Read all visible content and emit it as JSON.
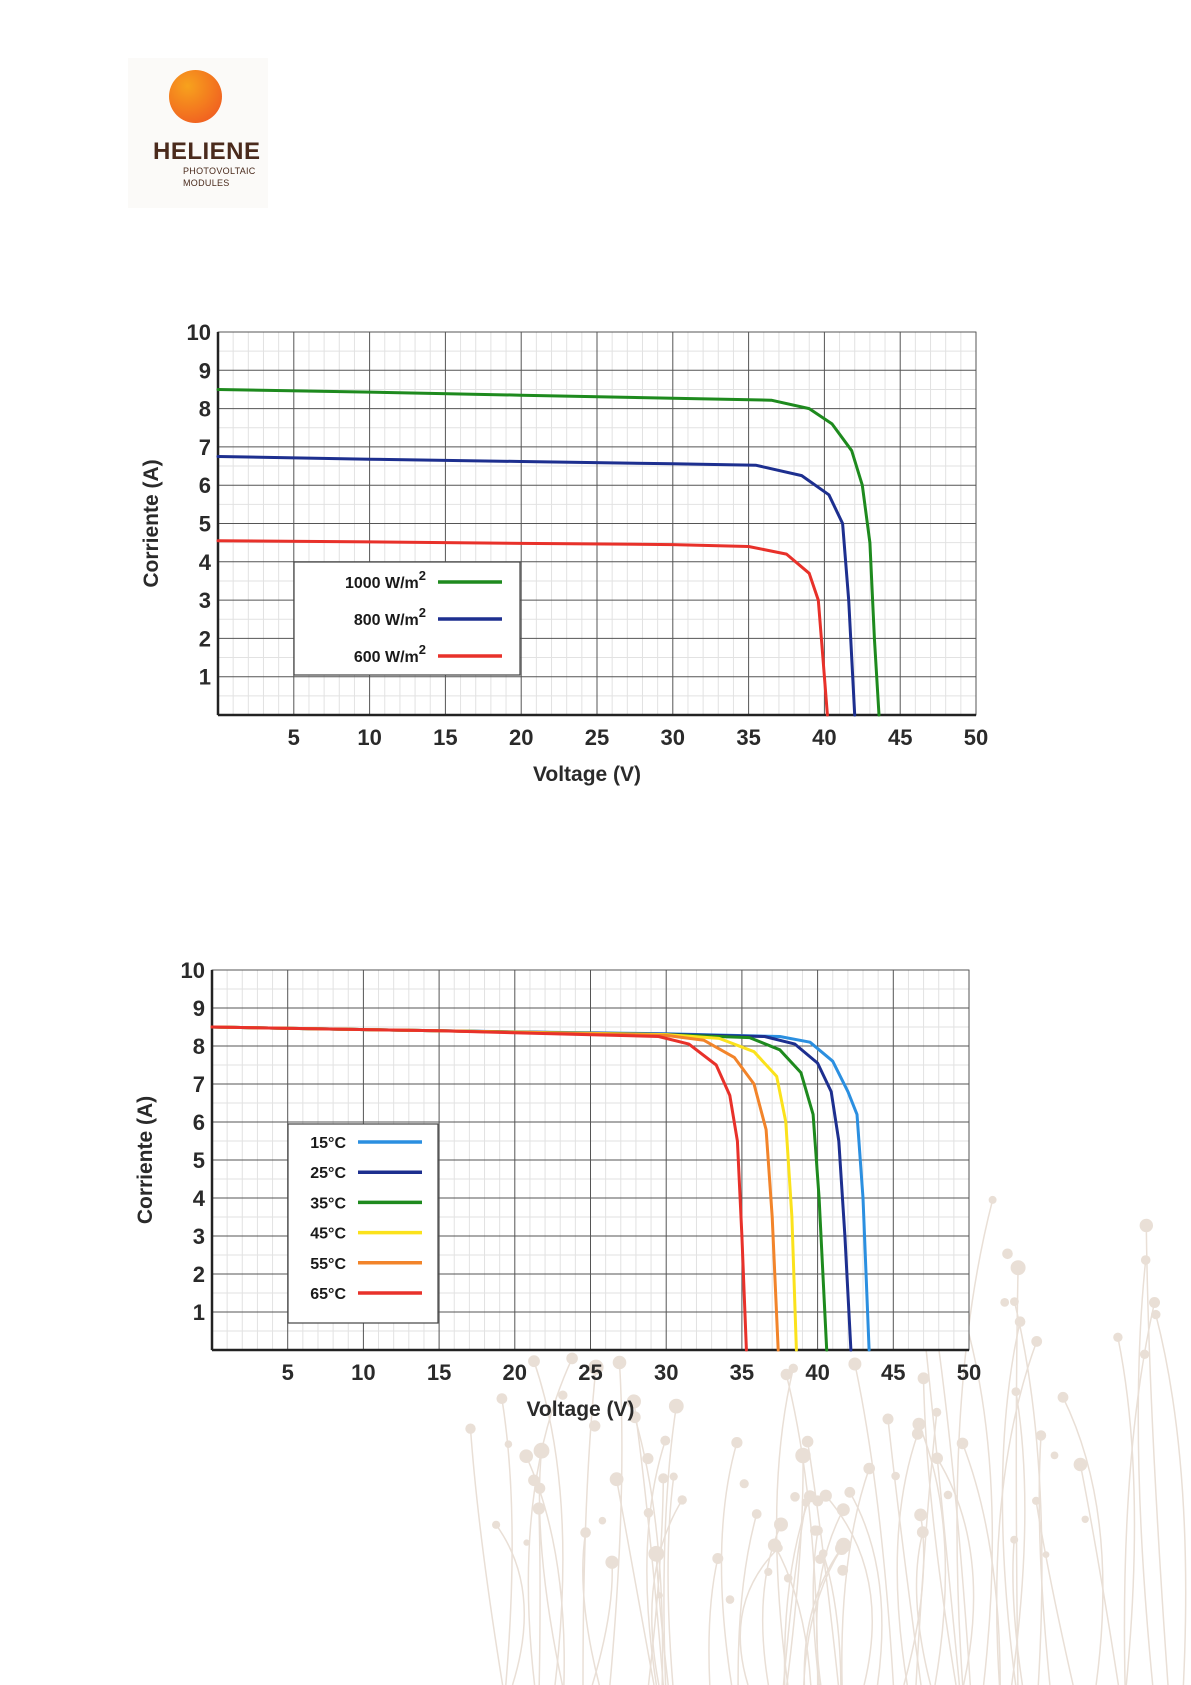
{
  "logo": {
    "name": "HELIENE",
    "sub1": "PHOTOVOLTAIC",
    "sub2": "MODULES",
    "sun_colors": [
      "#f7a21d",
      "#ee4f23"
    ]
  },
  "chart_data": [
    {
      "type": "line",
      "title": "",
      "xlabel": "Voltage (V)",
      "ylabel": "Corriente (A)",
      "xlim": [
        0,
        50
      ],
      "ylim": [
        0,
        10
      ],
      "x_ticks": [
        5,
        10,
        15,
        20,
        25,
        30,
        35,
        40,
        45,
        50
      ],
      "y_ticks": [
        1,
        2,
        3,
        4,
        5,
        6,
        7,
        8,
        9,
        10
      ],
      "grid": true,
      "legend_position": "lower-left",
      "series": [
        {
          "name": "1000 W/m",
          "name_sup": "2",
          "color": "#1e8a1e",
          "points": [
            [
              0,
              8.5
            ],
            [
              10,
              8.43
            ],
            [
              20,
              8.35
            ],
            [
              30,
              8.27
            ],
            [
              36.5,
              8.22
            ],
            [
              39,
              8.0
            ],
            [
              40.5,
              7.6
            ],
            [
              41.8,
              6.9
            ],
            [
              42.5,
              6.0
            ],
            [
              43,
              4.5
            ],
            [
              43.3,
              2.0
            ],
            [
              43.6,
              0
            ]
          ]
        },
        {
          "name": "800 W/m",
          "name_sup": "2",
          "color": "#1d2f8f",
          "points": [
            [
              0,
              6.75
            ],
            [
              10,
              6.68
            ],
            [
              20,
              6.62
            ],
            [
              30,
              6.56
            ],
            [
              35.5,
              6.52
            ],
            [
              38.5,
              6.25
            ],
            [
              40.3,
              5.75
            ],
            [
              41.2,
              5.0
            ],
            [
              41.6,
              3.0
            ],
            [
              42.0,
              0
            ]
          ]
        },
        {
          "name": "600 W/m",
          "name_sup": "2",
          "color": "#e8312a",
          "points": [
            [
              0,
              4.55
            ],
            [
              10,
              4.52
            ],
            [
              20,
              4.48
            ],
            [
              30,
              4.45
            ],
            [
              35,
              4.4
            ],
            [
              37.5,
              4.2
            ],
            [
              39.0,
              3.7
            ],
            [
              39.6,
              3.0
            ],
            [
              39.9,
              1.5
            ],
            [
              40.2,
              0
            ]
          ]
        }
      ]
    },
    {
      "type": "line",
      "title": "",
      "xlabel": "Voltage (V)",
      "ylabel": "Corriente (A)",
      "xlim": [
        0,
        50
      ],
      "ylim": [
        0,
        10
      ],
      "x_ticks": [
        5,
        10,
        15,
        20,
        25,
        30,
        35,
        40,
        45,
        50
      ],
      "y_ticks": [
        1,
        2,
        3,
        4,
        5,
        6,
        7,
        8,
        9,
        10
      ],
      "grid": true,
      "legend_position": "lower-left",
      "series": [
        {
          "name": "15°C",
          "color": "#2b8fe0",
          "points": [
            [
              0,
              8.5
            ],
            [
              15,
              8.4
            ],
            [
              30,
              8.32
            ],
            [
              37.5,
              8.25
            ],
            [
              39.5,
              8.1
            ],
            [
              41.0,
              7.6
            ],
            [
              42.0,
              6.8
            ],
            [
              42.6,
              6.2
            ],
            [
              43.0,
              4.0
            ],
            [
              43.4,
              0
            ]
          ]
        },
        {
          "name": "25°C",
          "color": "#1d2f8f",
          "points": [
            [
              0,
              8.5
            ],
            [
              15,
              8.4
            ],
            [
              30,
              8.31
            ],
            [
              36.5,
              8.25
            ],
            [
              38.5,
              8.05
            ],
            [
              40.0,
              7.55
            ],
            [
              40.9,
              6.8
            ],
            [
              41.4,
              5.5
            ],
            [
              41.8,
              3.0
            ],
            [
              42.2,
              0
            ]
          ]
        },
        {
          "name": "35°C",
          "color": "#1e8a1e",
          "points": [
            [
              0,
              8.5
            ],
            [
              15,
              8.4
            ],
            [
              30,
              8.3
            ],
            [
              35.5,
              8.22
            ],
            [
              37.5,
              7.9
            ],
            [
              38.9,
              7.3
            ],
            [
              39.7,
              6.2
            ],
            [
              40.1,
              4.0
            ],
            [
              40.6,
              0
            ]
          ]
        },
        {
          "name": "45°C",
          "color": "#fbe21c",
          "points": [
            [
              0,
              8.5
            ],
            [
              15,
              8.4
            ],
            [
              30,
              8.3
            ],
            [
              33.5,
              8.2
            ],
            [
              35.8,
              7.85
            ],
            [
              37.3,
              7.2
            ],
            [
              37.9,
              6.0
            ],
            [
              38.3,
              3.5
            ],
            [
              38.6,
              0
            ]
          ]
        },
        {
          "name": "55°C",
          "color": "#f2842a",
          "points": [
            [
              0,
              8.5
            ],
            [
              15,
              8.4
            ],
            [
              30,
              8.28
            ],
            [
              32.5,
              8.15
            ],
            [
              34.5,
              7.7
            ],
            [
              35.8,
              7.0
            ],
            [
              36.6,
              5.8
            ],
            [
              37.0,
              3.5
            ],
            [
              37.4,
              0
            ]
          ]
        },
        {
          "name": "65°C",
          "color": "#e8312a",
          "points": [
            [
              0,
              8.5
            ],
            [
              15,
              8.4
            ],
            [
              29.5,
              8.25
            ],
            [
              31.5,
              8.05
            ],
            [
              33.3,
              7.5
            ],
            [
              34.2,
              6.7
            ],
            [
              34.7,
              5.5
            ],
            [
              35.0,
              3.0
            ],
            [
              35.3,
              0
            ]
          ]
        }
      ]
    }
  ]
}
